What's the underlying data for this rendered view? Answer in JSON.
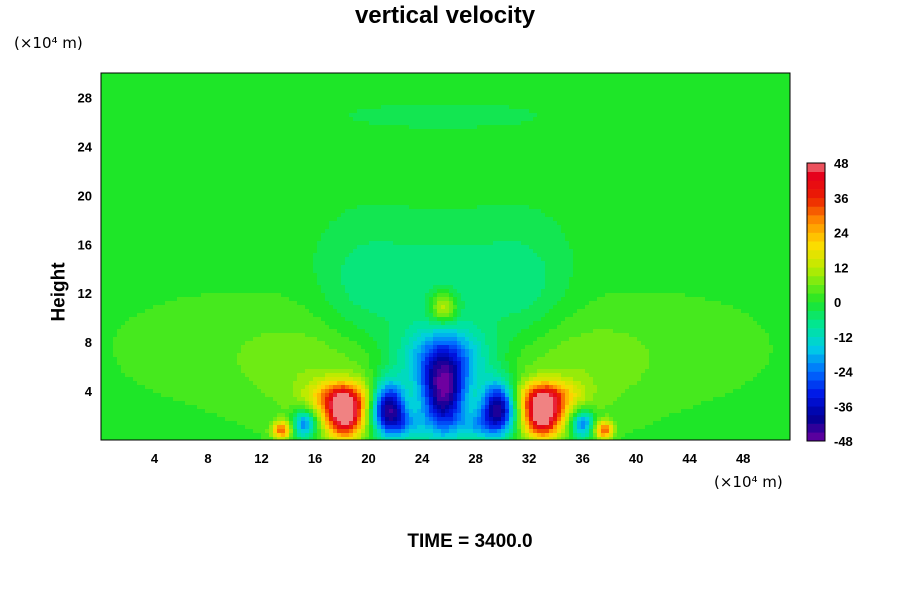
{
  "chart_data": {
    "type": "heatmap",
    "title": "vertical velocity",
    "xlabel": "",
    "ylabel": "Height",
    "x_unit": "(×10⁴ m)",
    "y_unit": "(×10⁴ m)",
    "xlim": [
      0,
      51.5
    ],
    "ylim": [
      0,
      30
    ],
    "x_ticks": [
      "4",
      "8",
      "12",
      "16",
      "20",
      "24",
      "28",
      "32",
      "36",
      "40",
      "44",
      "48"
    ],
    "y_ticks": [
      "4",
      "8",
      "12",
      "16",
      "20",
      "24",
      "28"
    ],
    "x_tick_values": [
      4,
      8,
      12,
      16,
      20,
      24,
      28,
      32,
      36,
      40,
      44,
      48
    ],
    "y_tick_values": [
      4,
      8,
      12,
      16,
      20,
      24,
      28
    ],
    "colorbar": {
      "min": -48,
      "max": 48,
      "labels": [
        "48",
        "36",
        "24",
        "12",
        "0",
        "-12",
        "-24",
        "-36",
        "-48"
      ],
      "label_values": [
        48,
        36,
        24,
        12,
        0,
        -12,
        -24,
        -36,
        -48
      ]
    },
    "background_value": 0,
    "features": [
      {
        "x": 13.5,
        "y": 0.8,
        "sx": 0.5,
        "sy": 0.5,
        "value": 30
      },
      {
        "x": 15.2,
        "y": 1.3,
        "sx": 0.6,
        "sy": 0.8,
        "value": -25
      },
      {
        "x": 18.2,
        "y": 2.0,
        "sx": 1.0,
        "sy": 1.3,
        "value": 50
      },
      {
        "x": 17.8,
        "y": 3.6,
        "sx": 1.6,
        "sy": 0.9,
        "value": 22
      },
      {
        "x": 21.5,
        "y": 2.6,
        "sx": 0.9,
        "sy": 1.5,
        "value": -45
      },
      {
        "x": 22.8,
        "y": 1.2,
        "sx": 1.0,
        "sy": 0.9,
        "value": -14
      },
      {
        "x": 25.6,
        "y": 3.5,
        "sx": 1.2,
        "sy": 2.3,
        "value": -42
      },
      {
        "x": 25.6,
        "y": 6.6,
        "sx": 2.4,
        "sy": 1.9,
        "value": -24
      },
      {
        "x": 28.2,
        "y": 1.2,
        "sx": 1.0,
        "sy": 0.9,
        "value": -14
      },
      {
        "x": 29.7,
        "y": 2.6,
        "sx": 0.9,
        "sy": 1.5,
        "value": -45
      },
      {
        "x": 33.0,
        "y": 2.0,
        "sx": 1.0,
        "sy": 1.3,
        "value": 50
      },
      {
        "x": 33.4,
        "y": 3.6,
        "sx": 1.6,
        "sy": 0.9,
        "value": 22
      },
      {
        "x": 36.0,
        "y": 1.3,
        "sx": 0.6,
        "sy": 0.8,
        "value": -25
      },
      {
        "x": 37.6,
        "y": 0.8,
        "sx": 0.5,
        "sy": 0.5,
        "value": 30
      },
      {
        "x": 25.6,
        "y": 10.8,
        "sx": 0.7,
        "sy": 0.9,
        "value": 18
      },
      {
        "x": 25.6,
        "y": 13.0,
        "sx": 3.5,
        "sy": 3.5,
        "value": -6
      },
      {
        "x": 17.5,
        "y": 5.5,
        "sx": 4.5,
        "sy": 3.5,
        "value": 7
      },
      {
        "x": 33.7,
        "y": 5.5,
        "sx": 4.5,
        "sy": 3.5,
        "value": 7
      },
      {
        "x": 19.5,
        "y": 12.0,
        "sx": 2.5,
        "sy": 4.0,
        "value": -6
      },
      {
        "x": 31.7,
        "y": 12.0,
        "sx": 2.5,
        "sy": 4.0,
        "value": -6
      },
      {
        "x": 25.6,
        "y": 26.5,
        "sx": 5.0,
        "sy": 0.7,
        "value": -4
      },
      {
        "x": 8.0,
        "y": 7.5,
        "sx": 6.0,
        "sy": 3.5,
        "value": 3
      },
      {
        "x": 43.0,
        "y": 7.5,
        "sx": 6.0,
        "sy": 3.5,
        "value": 3
      }
    ]
  },
  "labels": {
    "title": "vertical velocity",
    "y_unit": "(×10⁴ m)",
    "x_unit": "(×10⁴ m)",
    "ylabel": "Height",
    "time": "TIME = 3400.0"
  },
  "colors": {
    "background": "#ffffff",
    "axis": "#000000"
  }
}
